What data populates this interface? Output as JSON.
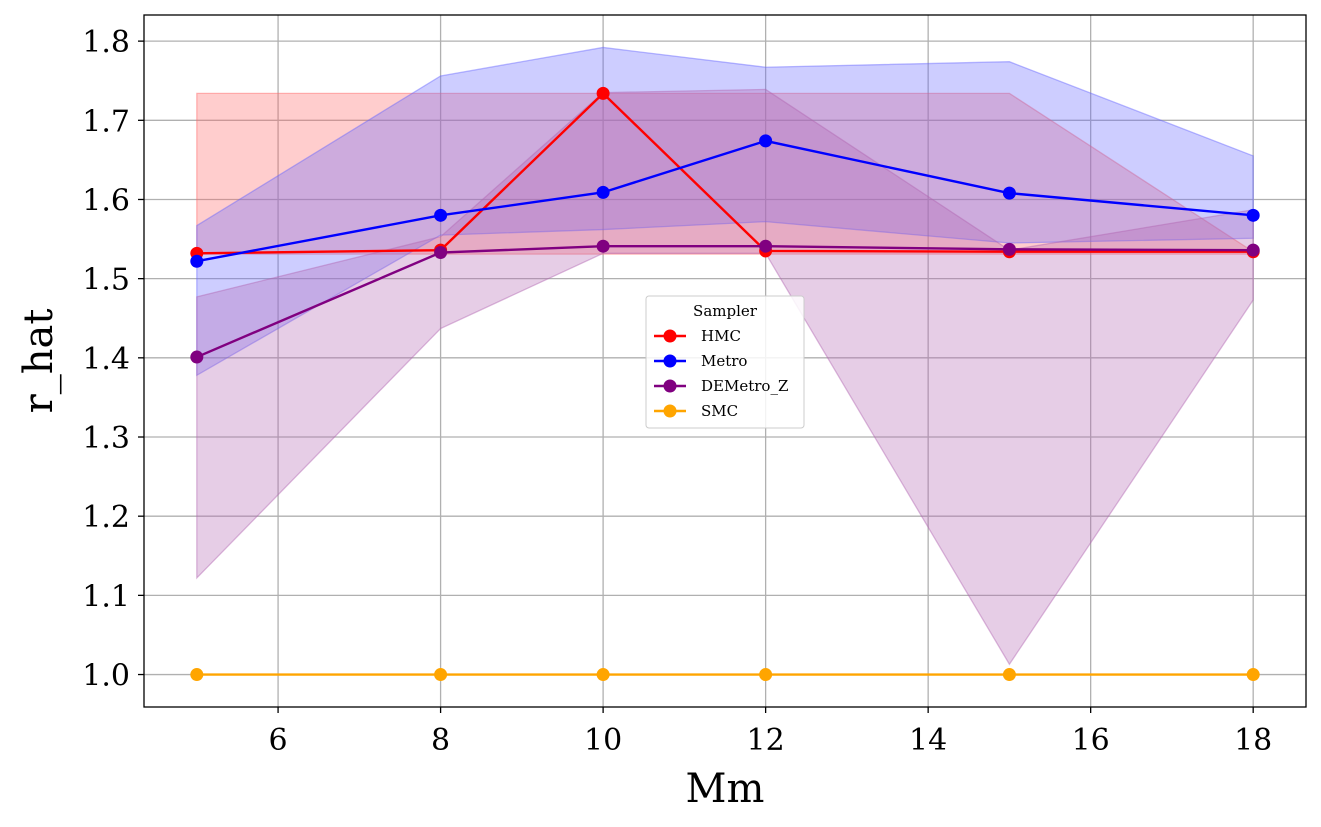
{
  "chart_data": {
    "type": "line",
    "xlabel": "Mm",
    "ylabel": "r_hat",
    "xlim": [
      4.35,
      18.65
    ],
    "ylim": [
      0.959,
      1.833
    ],
    "xticks": [
      6,
      8,
      10,
      12,
      14,
      16,
      18
    ],
    "yticks": [
      1.0,
      1.1,
      1.2,
      1.3,
      1.4,
      1.5,
      1.6,
      1.7,
      1.8
    ],
    "grid": true,
    "legend": {
      "title": "Sampler",
      "placement": "center"
    },
    "x": [
      5,
      8,
      10,
      12,
      15,
      18
    ],
    "series": [
      {
        "name": "HMC",
        "color": "#ff0000",
        "fill": "#ff6666",
        "values": [
          1.532,
          1.536,
          1.734,
          1.535,
          1.534,
          1.534
        ],
        "lower": [
          1.531,
          1.531,
          1.531,
          1.531,
          1.531,
          1.531
        ],
        "upper": [
          1.734,
          1.734,
          1.734,
          1.734,
          1.734,
          1.534
        ]
      },
      {
        "name": "Metro",
        "color": "#0000ff",
        "fill": "#6666ff",
        "values": [
          1.522,
          1.58,
          1.609,
          1.674,
          1.608,
          1.58
        ],
        "lower": [
          1.378,
          1.555,
          1.562,
          1.572,
          1.545,
          1.551
        ],
        "upper": [
          1.567,
          1.756,
          1.792,
          1.767,
          1.774,
          1.655
        ]
      },
      {
        "name": "DEMetro_Z",
        "color": "#800080",
        "fill": "#b266b2",
        "values": [
          1.401,
          1.533,
          1.541,
          1.541,
          1.537,
          1.536
        ],
        "lower": [
          1.122,
          1.437,
          1.532,
          1.532,
          1.013,
          1.473
        ],
        "upper": [
          1.477,
          1.553,
          1.735,
          1.739,
          1.536,
          1.587
        ]
      },
      {
        "name": "SMC",
        "color": "#ffa500",
        "fill": "#ffa500",
        "values": [
          1.0,
          1.0,
          1.0,
          1.0,
          1.0,
          1.0
        ],
        "lower": [
          1.0,
          1.0,
          1.0,
          1.0,
          1.0,
          1.0
        ],
        "upper": [
          1.0,
          1.0,
          1.0,
          1.0,
          1.0,
          1.0
        ]
      }
    ]
  }
}
